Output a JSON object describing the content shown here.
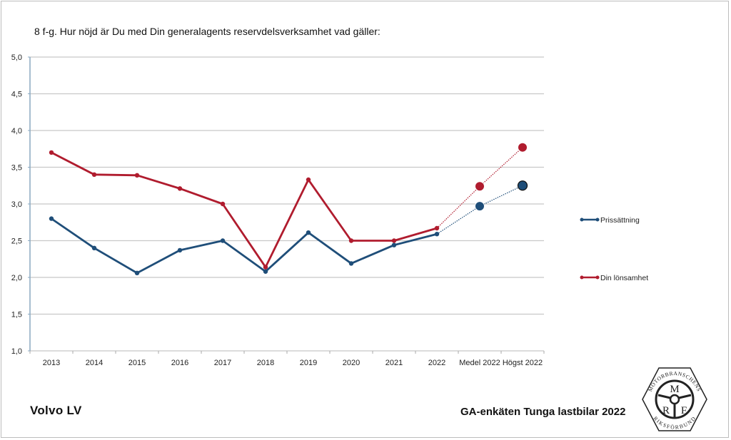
{
  "title": "8 f-g. Hur nöjd är Du med Din generalagents reservdelsverksamhet vad gäller:",
  "footer": {
    "brand": "Volvo LV",
    "survey": "GA-enkäten Tunga lastbilar 2022",
    "logo": {
      "icon": "mrf-steering-wheel-logo",
      "ring_text_top": "MOTORBRANSCHENS",
      "ring_text_bottom": "RIKSFÖRBUND",
      "letters": [
        "M",
        "R",
        "F"
      ]
    }
  },
  "colors": {
    "prissattning": "#1f4e79",
    "lonsamhet": "#b01c2e",
    "grid": "#c8c8c8",
    "axis": "#8aa9c1"
  },
  "chart_data": {
    "type": "line",
    "title": "8 f-g. Hur nöjd är Du med Din generalagents reservdelsverksamhet vad gäller:",
    "xlabel": "",
    "ylabel": "",
    "ylim": [
      1.0,
      5.0
    ],
    "yticks": [
      "1,0",
      "1,5",
      "2,0",
      "2,5",
      "3,0",
      "3,5",
      "4,0",
      "4,5",
      "5,0"
    ],
    "ytick_values": [
      1.0,
      1.5,
      2.0,
      2.5,
      3.0,
      3.5,
      4.0,
      4.5,
      5.0
    ],
    "grid": true,
    "legend_position": "right",
    "categories": [
      "2013",
      "2014",
      "2015",
      "2016",
      "2017",
      "2018",
      "2019",
      "2020",
      "2021",
      "2022",
      "Medel 2022",
      "Högst 2022"
    ],
    "series": [
      {
        "name": "Prissättning",
        "color": "#1f4e79",
        "values": [
          2.8,
          2.4,
          2.06,
          2.37,
          2.5,
          2.08,
          2.61,
          2.19,
          2.44,
          2.59,
          2.97,
          3.25
        ],
        "benchmark_from_index": 10
      },
      {
        "name": "Din lönsamhet",
        "color": "#b01c2e",
        "values": [
          3.7,
          3.4,
          3.39,
          3.21,
          3.0,
          2.14,
          3.33,
          2.5,
          2.5,
          2.67,
          3.24,
          3.77
        ],
        "benchmark_from_index": 10
      }
    ]
  }
}
